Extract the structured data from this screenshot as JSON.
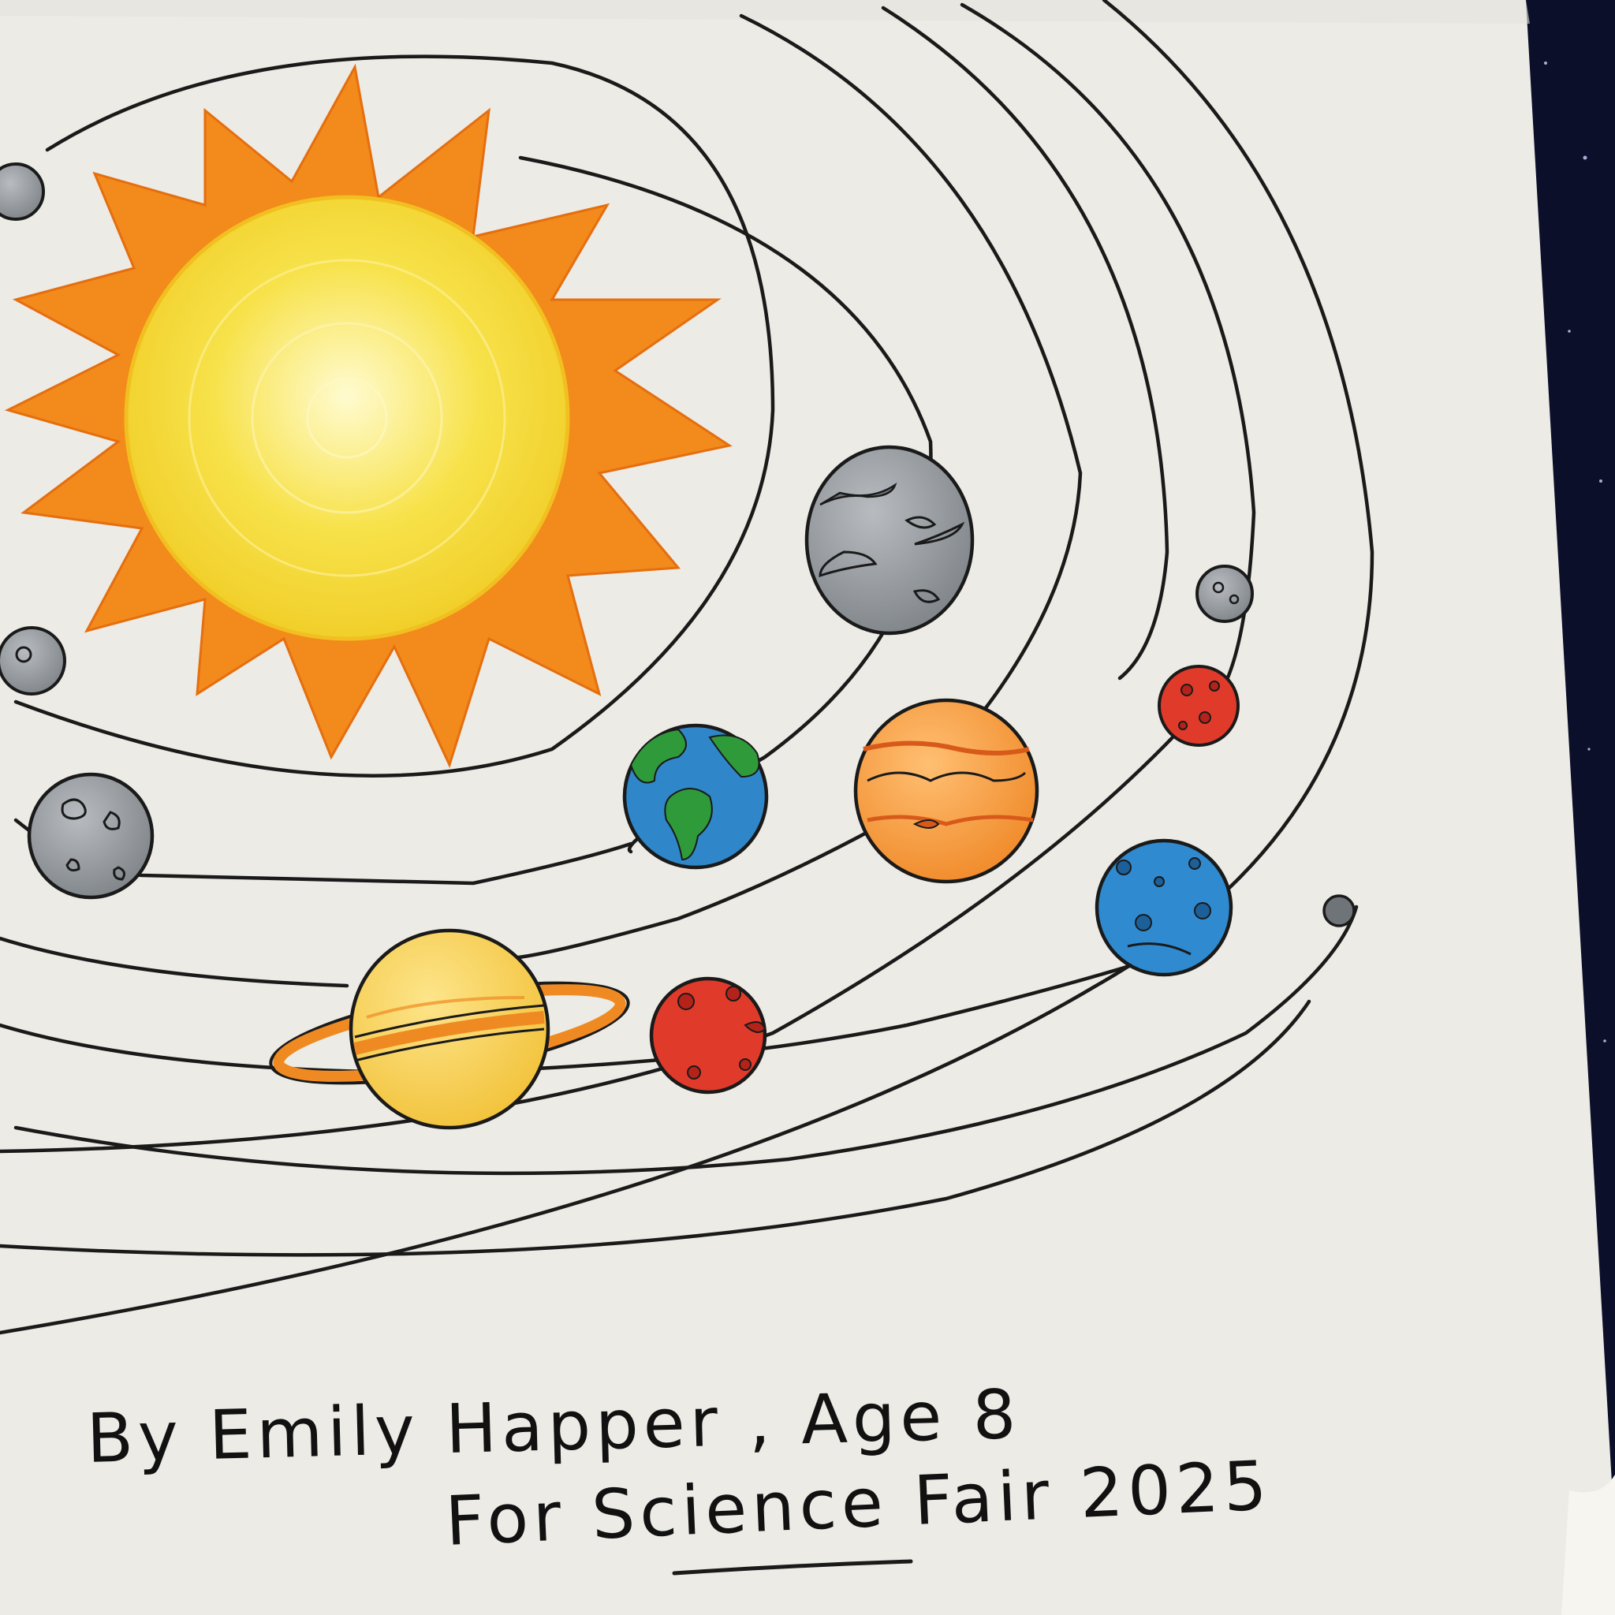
{
  "artwork": {
    "subject": "solar-system-drawing",
    "caption_line_1": "By Emily Happer ,  Age 8",
    "caption_line_2": "For Science Fair 2025"
  },
  "colors": {
    "paper": "#ecebe5",
    "space": "#0b0f2a",
    "ink": "#1a1a1a",
    "sun_core": "#f7e24a",
    "sun_rays": "#f28a1c",
    "gray_planet": "#9a9ea3",
    "earth_ocean": "#2f86c9",
    "earth_land": "#2f9a3a",
    "jupiter": "#f3a14a",
    "saturn": "#f6d15a",
    "saturn_ring": "#ef8a22",
    "mars": "#e03a2a",
    "neptune": "#2f8ad0"
  },
  "icons": [
    "sun-icon",
    "planet-icon",
    "moon-icon",
    "star-icon"
  ]
}
